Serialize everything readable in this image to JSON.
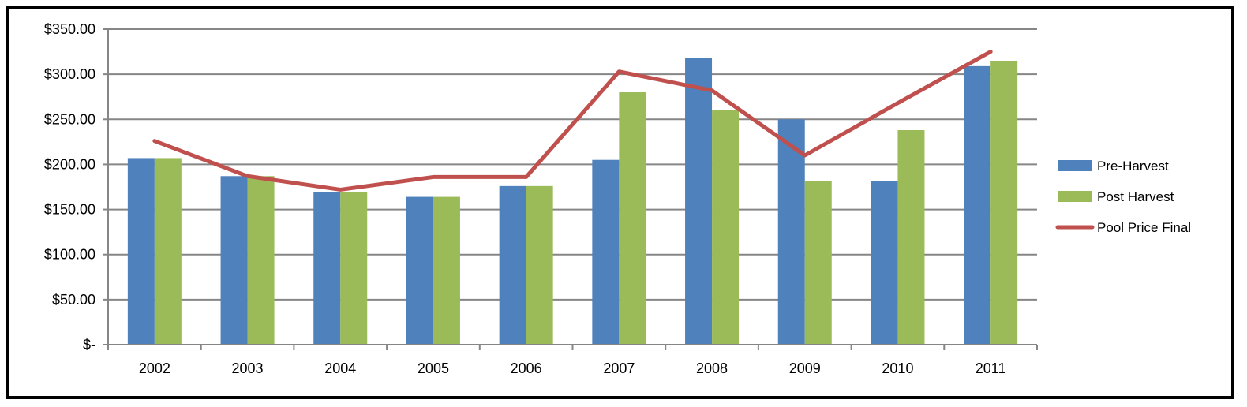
{
  "chart_data": {
    "type": "bar",
    "title": "",
    "xlabel": "",
    "ylabel": "",
    "categories": [
      "2002",
      "2003",
      "2004",
      "2005",
      "2006",
      "2007",
      "2008",
      "2009",
      "2010",
      "2011"
    ],
    "ylim": [
      0,
      350
    ],
    "y_ticks": [
      0,
      50,
      100,
      150,
      200,
      250,
      300,
      350
    ],
    "y_tick_labels": [
      "$-",
      "$50.00",
      "$100.00",
      "$150.00",
      "$200.00",
      "$250.00",
      "$300.00",
      "$350.00"
    ],
    "grid": true,
    "legend_position": "right",
    "series": [
      {
        "name": "Pre-Harvest",
        "type": "bar",
        "color": "#4F81BD",
        "values": [
          207,
          187,
          169,
          164,
          176,
          205,
          318,
          250,
          182,
          309
        ]
      },
      {
        "name": "Post Harvest",
        "type": "bar",
        "color": "#9BBB59",
        "values": [
          207,
          187,
          169,
          164,
          176,
          280,
          260,
          182,
          238,
          315
        ]
      },
      {
        "name": "Pool Price Final",
        "type": "line",
        "color": "#C0504D",
        "values": [
          226,
          187,
          172,
          186,
          186,
          303,
          282,
          210,
          268,
          325
        ]
      }
    ]
  }
}
